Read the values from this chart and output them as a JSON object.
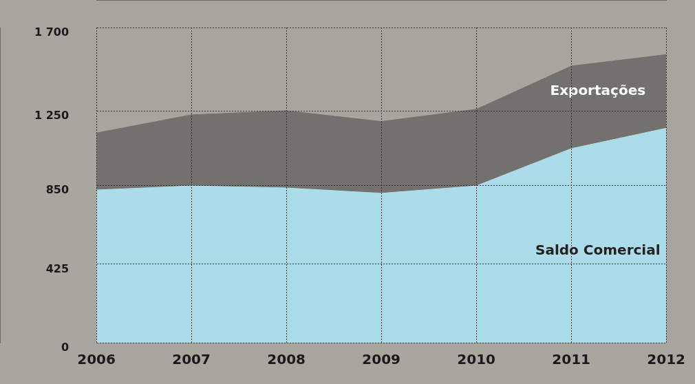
{
  "chart_data": {
    "type": "area",
    "categories": [
      "2006",
      "2007",
      "2008",
      "2009",
      "2010",
      "2011",
      "2012"
    ],
    "series": [
      {
        "name": "Exportações",
        "color": "#72716d",
        "values": [
          1131,
          1229,
          1251,
          1193,
          1259,
          1492,
          1554
        ]
      },
      {
        "name": "Saldo Comercial",
        "color": "#acdbe9",
        "values": [
          824,
          846,
          835,
          806,
          846,
          1047,
          1157
        ]
      }
    ],
    "ylim": [
      0,
      1700
    ],
    "yticks": [
      0,
      425,
      850,
      {
        "value": 1250,
        "label": "1 250"
      },
      {
        "value": 1700,
        "label": "1 700"
      }
    ],
    "grid": true,
    "legend": false
  }
}
